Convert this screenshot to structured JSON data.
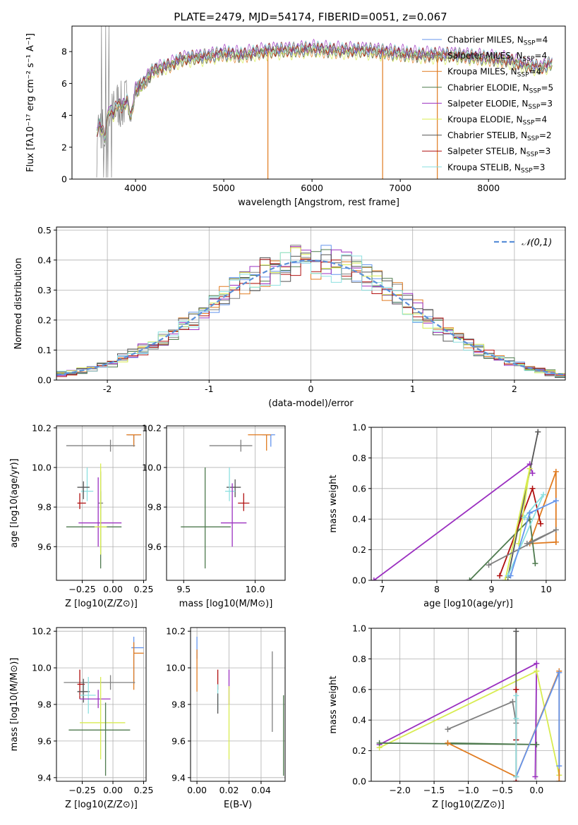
{
  "figure_title": "PLATE=2479, MJD=54174, FIBERID=0051, z=0.067",
  "colors": {
    "axis": "#000000",
    "grid": "#b0b0b0",
    "gaussian": "#5b8fd8",
    "spectrum_grey": "#808080"
  },
  "series_styles": [
    {
      "name": "Chabrier MILES, N_SSP=4",
      "name_base": "Chabrier MILES, N",
      "name_sub": "SSP",
      "name_tail": "=4",
      "color": "#6495ed"
    },
    {
      "name": "Salpeter MILES, N_SSP=4",
      "name_base": "Salpeter MILES, N",
      "name_sub": "SSP",
      "name_tail": "=4",
      "color": "#808080"
    },
    {
      "name": "Kroupa MILES, N_SSP=4",
      "name_base": "Kroupa MILES, N",
      "name_sub": "SSP",
      "name_tail": "=4",
      "color": "#e07b20"
    },
    {
      "name": "Chabrier ELODIE, N_SSP=5",
      "name_base": "Chabrier ELODIE, N",
      "name_sub": "SSP",
      "name_tail": "=5",
      "color": "#4e7a4e"
    },
    {
      "name": "Salpeter ELODIE, N_SSP=3",
      "name_base": "Salpeter ELODIE, N",
      "name_sub": "SSP",
      "name_tail": "=3",
      "color": "#9b30c0"
    },
    {
      "name": "Kroupa ELODIE, N_SSP=4",
      "name_base": "Kroupa ELODIE, N",
      "name_sub": "SSP",
      "name_tail": "=4",
      "color": "#d8ec50"
    },
    {
      "name": "Chabrier STELIB, N_SSP=2",
      "name_base": "Chabrier STELIB, N",
      "name_sub": "SSP",
      "name_tail": "=2",
      "color": "#555555"
    },
    {
      "name": "Salpeter STELIB, N_SSP=3",
      "name_base": "Salpeter STELIB, N",
      "name_sub": "SSP",
      "name_tail": "=3",
      "color": "#b01010"
    },
    {
      "name": "Kroupa STELIB, N_SSP=3",
      "name_base": "Kroupa STELIB, N",
      "name_sub": "SSP",
      "name_tail": "=3",
      "color": "#8ce0e0"
    }
  ],
  "chart_data": [
    {
      "id": "spectrum",
      "type": "line",
      "title": "",
      "xlabel": "wavelength [Angstrom, rest frame]",
      "ylabel": "Flux [fλ10⁻¹⁷ erg cm⁻² s⁻¹ A⁻¹]",
      "xlim": [
        3280,
        8870
      ],
      "ylim": [
        0,
        9.6
      ],
      "xticks": [
        4000,
        5000,
        6000,
        7000,
        8000
      ],
      "yticks": [
        0,
        2,
        4,
        6,
        8
      ],
      "grid": false,
      "legend_position": "upper-right",
      "data_profile_x": [
        3550,
        3600,
        3650,
        3700,
        3750,
        3800,
        3850,
        3900,
        3950,
        4000,
        4050,
        4100,
        4200,
        4300,
        4400,
        4500,
        4600,
        4800,
        5000,
        5200,
        5400,
        5600,
        5800,
        6000,
        6200,
        6400,
        6600,
        6800,
        7000,
        7200,
        7400,
        7600,
        7800,
        8000,
        8200,
        8400,
        8600,
        8720
      ],
      "data_profile_y": [
        2.9,
        3.5,
        2.6,
        4.4,
        4.1,
        4.8,
        4.5,
        5.0,
        3.9,
        5.6,
        5.8,
        6.1,
        6.8,
        7.0,
        7.2,
        7.5,
        7.6,
        7.7,
        7.9,
        7.8,
        8.0,
        8.1,
        8.1,
        8.2,
        8.1,
        8.1,
        8.1,
        8.0,
        7.9,
        7.8,
        7.8,
        7.8,
        7.7,
        7.6,
        7.5,
        7.2,
        7.0,
        7.3
      ],
      "model_scales": [
        1.0,
        1.01,
        0.985,
        0.995,
        1.02,
        0.975,
        0.99,
        1.005,
        1.01
      ]
    },
    {
      "id": "residuals",
      "type": "histogram",
      "title": "",
      "xlabel": "(data-model)/error",
      "ylabel": "Normed distribution",
      "xlim": [
        -2.5,
        2.5
      ],
      "ylim": [
        0,
        0.51
      ],
      "xticks": [
        -2,
        -1,
        0,
        1,
        2
      ],
      "yticks": [
        0.0,
        0.1,
        0.2,
        0.3,
        0.4,
        0.5
      ],
      "grid": true,
      "legend_position": "upper-right",
      "reference_curve": {
        "name": "𝒩(0,1)",
        "mean": 0,
        "sigma": 1
      },
      "bin_width": 0.1,
      "bin_start": -2.5
    },
    {
      "id": "age_vs_Z",
      "type": "errorbar",
      "xlabel": "Z [log10(Z/Z⊙)]",
      "ylabel": "age [log10(age/yr)]",
      "xlim": [
        -0.46,
        0.27
      ],
      "ylim": [
        9.43,
        10.21
      ],
      "xticks": [
        -0.25,
        0.0,
        0.25
      ],
      "yticks": [
        9.6,
        9.8,
        10.0,
        10.2
      ],
      "grid": true,
      "points": [
        {
          "series": 0,
          "x": 0.17,
          "y": 10.165,
          "xerr": [
            0.05,
            0.05
          ],
          "yerr": [
            0.05,
            0.0
          ]
        },
        {
          "series": 2,
          "x": 0.17,
          "y": 10.165,
          "xerr": [
            0.06,
            0.06
          ],
          "yerr": [
            0.06,
            0.0
          ]
        },
        {
          "series": 8,
          "x": -0.21,
          "y": 9.88,
          "xerr": [
            0.05,
            0.05
          ],
          "yerr": [
            0.05,
            0.12
          ]
        },
        {
          "series": 1,
          "x": -0.1,
          "y": 9.82,
          "xerr": [
            0.02,
            0.02
          ],
          "yerr": [
            0.03,
            0.16
          ]
        },
        {
          "series": 7,
          "x": -0.27,
          "y": 9.82,
          "xerr": [
            0.02,
            0.05
          ],
          "yerr": [
            0.03,
            0.05
          ]
        },
        {
          "series": 6,
          "x": -0.24,
          "y": 9.9,
          "xerr": [
            0.05,
            0.05
          ],
          "yerr": [
            0.06,
            0.03
          ]
        },
        {
          "series": 4,
          "x": -0.12,
          "y": 9.72,
          "xerr": [
            0.16,
            0.19
          ],
          "yerr": [
            0.12,
            0.23
          ]
        },
        {
          "series": 3,
          "x": -0.1,
          "y": 9.7,
          "xerr": [
            0.28,
            0.17
          ],
          "yerr": [
            0.21,
            0.18
          ]
        },
        {
          "series": 5,
          "x": -0.1,
          "y": 9.7,
          "xerr": [
            0.05,
            0.05
          ],
          "yerr": [
            0.14,
            0.32
          ]
        },
        {
          "series": 1,
          "x": -0.02,
          "y": 10.11,
          "xerr": [
            0.36,
            0.2
          ],
          "yerr": [
            0.03,
            0.03
          ]
        }
      ]
    },
    {
      "id": "age_vs_mass",
      "type": "errorbar",
      "xlabel": "mass [log10(M/M⊙)]",
      "ylabel": "",
      "xlim": [
        9.38,
        10.21
      ],
      "ylim": [
        9.43,
        10.21
      ],
      "xticks": [
        9.5,
        10.0
      ],
      "yticks": [
        9.6,
        9.8,
        10.0,
        10.2
      ],
      "grid": true,
      "points": [
        {
          "series": 0,
          "x": 10.11,
          "y": 10.165,
          "xerr": [
            0.06,
            0.03
          ],
          "yerr": [
            0.06,
            0.0
          ]
        },
        {
          "series": 2,
          "x": 10.08,
          "y": 10.165,
          "xerr": [
            0.13,
            0.03
          ],
          "yerr": [
            0.08,
            0.0
          ]
        },
        {
          "series": 6,
          "x": 9.86,
          "y": 9.9,
          "xerr": [
            0.06,
            0.04
          ],
          "yerr": [
            0.05,
            0.04
          ]
        },
        {
          "series": 8,
          "x": 9.82,
          "y": 9.88,
          "xerr": [
            0.03,
            0.04
          ],
          "yerr": [
            0.05,
            0.12
          ]
        },
        {
          "series": 7,
          "x": 9.92,
          "y": 9.82,
          "xerr": [
            0.04,
            0.04
          ],
          "yerr": [
            0.04,
            0.05
          ]
        },
        {
          "series": 4,
          "x": 9.84,
          "y": 9.72,
          "xerr": [
            0.08,
            0.1
          ],
          "yerr": [
            0.12,
            0.2
          ]
        },
        {
          "series": 3,
          "x": 9.65,
          "y": 9.7,
          "xerr": [
            0.17,
            0.18
          ],
          "yerr": [
            0.21,
            0.3
          ]
        },
        {
          "series": 1,
          "x": 9.9,
          "y": 10.11,
          "xerr": [
            0.22,
            0.08
          ],
          "yerr": [
            0.03,
            0.03
          ]
        }
      ]
    },
    {
      "id": "weight_vs_age",
      "type": "line",
      "xlabel": "age [log10(age/yr)]",
      "ylabel": "mass weight",
      "xlim": [
        6.8,
        10.35
      ],
      "ylim": [
        0,
        1.0
      ],
      "xticks": [
        7,
        8,
        9,
        10
      ],
      "yticks": [
        0.0,
        0.2,
        0.4,
        0.6,
        0.8,
        1.0
      ],
      "grid": true,
      "series": [
        {
          "series": 4,
          "x": [
            6.85,
            9.7,
            9.75
          ],
          "y": [
            0.0,
            0.76,
            0.7
          ]
        },
        {
          "series": 6,
          "x": [
            9.3,
            9.85
          ],
          "y": [
            0.02,
            0.97
          ]
        },
        {
          "series": 2,
          "x": [
            10.18,
            10.18,
            9.7,
            10.18
          ],
          "y": [
            0.25,
            0.71,
            0.24,
            0.25
          ]
        },
        {
          "series": 3,
          "x": [
            8.6,
            9.7,
            9.8
          ],
          "y": [
            0.0,
            0.4,
            0.11
          ]
        },
        {
          "series": 7,
          "x": [
            9.15,
            9.75,
            9.9
          ],
          "y": [
            0.03,
            0.6,
            0.37
          ]
        },
        {
          "series": 5,
          "x": [
            9.25,
            9.7,
            9.5
          ],
          "y": [
            0.0,
            0.73,
            0.24
          ]
        },
        {
          "series": 8,
          "x": [
            9.3,
            9.95,
            9.6
          ],
          "y": [
            0.03,
            0.56,
            0.41
          ]
        },
        {
          "series": 1,
          "x": [
            8.95,
            10.18,
            9.65
          ],
          "y": [
            0.1,
            0.33,
            0.24
          ]
        },
        {
          "series": 0,
          "x": [
            9.35,
            9.7,
            10.18
          ],
          "y": [
            0.03,
            0.44,
            0.52
          ]
        }
      ]
    },
    {
      "id": "mass_vs_Z",
      "type": "errorbar",
      "xlabel": "Z [log10(Z/Z⊙)]",
      "ylabel": "mass [log10(M/M⊙)]",
      "xlim": [
        -0.46,
        0.27
      ],
      "ylim": [
        9.38,
        10.22
      ],
      "xticks": [
        -0.25,
        0.0,
        0.25
      ],
      "yticks": [
        9.4,
        9.6,
        9.8,
        10.0,
        10.2
      ],
      "grid": true,
      "points": [
        {
          "series": 0,
          "x": 0.17,
          "y": 10.11,
          "xerr": [
            0.02,
            0.08
          ],
          "yerr": [
            0.2,
            0.06
          ]
        },
        {
          "series": 2,
          "x": 0.17,
          "y": 10.08,
          "xerr": [
            0.0,
            0.08
          ],
          "yerr": [
            0.2,
            0.06
          ]
        },
        {
          "series": 1,
          "x": -0.02,
          "y": 9.92,
          "xerr": [
            0.38,
            0.2
          ],
          "yerr": [
            0.04,
            0.04
          ]
        },
        {
          "series": 7,
          "x": -0.27,
          "y": 9.91,
          "xerr": [
            0.02,
            0.04
          ],
          "yerr": [
            0.08,
            0.08
          ]
        },
        {
          "series": 6,
          "x": -0.24,
          "y": 9.87,
          "xerr": [
            0.05,
            0.05
          ],
          "yerr": [
            0.06,
            0.07
          ]
        },
        {
          "series": 8,
          "x": -0.2,
          "y": 9.85,
          "xerr": [
            0.07,
            0.06
          ],
          "yerr": [
            0.1,
            0.1
          ]
        },
        {
          "series": 4,
          "x": -0.12,
          "y": 9.83,
          "xerr": [
            0.15,
            0.1
          ],
          "yerr": [
            0.05,
            0.05
          ]
        },
        {
          "series": 5,
          "x": -0.1,
          "y": 9.7,
          "xerr": [
            0.17,
            0.2
          ],
          "yerr": [
            0.2,
            0.25
          ]
        },
        {
          "series": 3,
          "x": -0.06,
          "y": 9.66,
          "xerr": [
            0.3,
            0.2
          ],
          "yerr": [
            0.25,
            0.15
          ]
        }
      ]
    },
    {
      "id": "mass_vs_ebv",
      "type": "errorbar",
      "xlabel": "E(B-V)",
      "ylabel": "",
      "xlim": [
        -0.004,
        0.055
      ],
      "ylim": [
        9.38,
        10.22
      ],
      "xticks": [
        0.0,
        0.02,
        0.04
      ],
      "yticks": [
        9.4,
        9.6,
        9.8,
        10.0,
        10.2
      ],
      "grid": true,
      "points": [
        {
          "series": 0,
          "x": 0.0,
          "y": 10.11,
          "xerr": [
            0,
            0
          ],
          "yerr": [
            0.06,
            0.06
          ]
        },
        {
          "series": 2,
          "x": 0.0,
          "y": 10.0,
          "xerr": [
            0,
            0
          ],
          "yerr": [
            0.13,
            0.1
          ]
        },
        {
          "series": 7,
          "x": 0.013,
          "y": 9.91,
          "xerr": [
            0,
            0
          ],
          "yerr": [
            0.03,
            0.08
          ]
        },
        {
          "series": 8,
          "x": 0.013,
          "y": 9.85,
          "xerr": [
            0,
            0
          ],
          "yerr": [
            0.08,
            0.06
          ]
        },
        {
          "series": 6,
          "x": 0.013,
          "y": 9.8,
          "xerr": [
            0,
            0
          ],
          "yerr": [
            0.05,
            0.06
          ]
        },
        {
          "series": 4,
          "x": 0.02,
          "y": 9.9,
          "xerr": [
            0,
            0
          ],
          "yerr": [
            0.1,
            0.09
          ]
        },
        {
          "series": 5,
          "x": 0.02,
          "y": 9.7,
          "xerr": [
            0,
            0
          ],
          "yerr": [
            0.2,
            0.2
          ]
        },
        {
          "series": 1,
          "x": 0.047,
          "y": 9.87,
          "xerr": [
            0,
            0
          ],
          "yerr": [
            0.22,
            0.22
          ]
        },
        {
          "series": 3,
          "x": 0.054,
          "y": 9.63,
          "xerr": [
            0,
            0
          ],
          "yerr": [
            0.22,
            0.22
          ]
        }
      ]
    },
    {
      "id": "weight_vs_Z",
      "type": "line",
      "xlabel": "Z [log10(Z/Z⊙)]",
      "ylabel": "mass weight",
      "xlim": [
        -2.42,
        0.42
      ],
      "ylim": [
        0,
        1.0
      ],
      "xticks": [
        -2.0,
        -1.5,
        -1.0,
        -0.5,
        0.0
      ],
      "yticks": [
        0.0,
        0.2,
        0.4,
        0.6,
        0.8,
        1.0
      ],
      "grid": true,
      "series": [
        {
          "series": 4,
          "x": [
            -2.3,
            0.0,
            -0.02
          ],
          "y": [
            0.24,
            0.77,
            0.03
          ]
        },
        {
          "series": 5,
          "x": [
            -2.3,
            0.0,
            0.33
          ],
          "y": [
            0.22,
            0.72,
            0.04
          ]
        },
        {
          "series": 3,
          "x": [
            -2.3,
            0.0,
            -1.3
          ],
          "y": [
            0.25,
            0.24,
            0.25
          ]
        },
        {
          "series": 2,
          "x": [
            -1.3,
            -0.3,
            0.33,
            0.33
          ],
          "y": [
            0.25,
            0.03,
            0.72,
            0.0
          ]
        },
        {
          "series": 0,
          "x": [
            -0.3,
            0.33,
            0.33
          ],
          "y": [
            0.03,
            0.71,
            0.1
          ]
        },
        {
          "series": 1,
          "x": [
            -1.3,
            -0.35,
            -0.3
          ],
          "y": [
            0.34,
            0.52,
            0.38
          ]
        },
        {
          "series": 6,
          "x": [
            -0.3,
            -0.3
          ],
          "y": [
            0.98,
            0.27
          ]
        },
        {
          "series": 7,
          "x": [
            -0.3,
            -0.3,
            -0.3
          ],
          "y": [
            0.6,
            0.27,
            0.0
          ]
        },
        {
          "series": 8,
          "x": [
            -0.3,
            -0.3,
            -0.3
          ],
          "y": [
            0.56,
            0.41,
            0.03
          ]
        }
      ]
    }
  ]
}
